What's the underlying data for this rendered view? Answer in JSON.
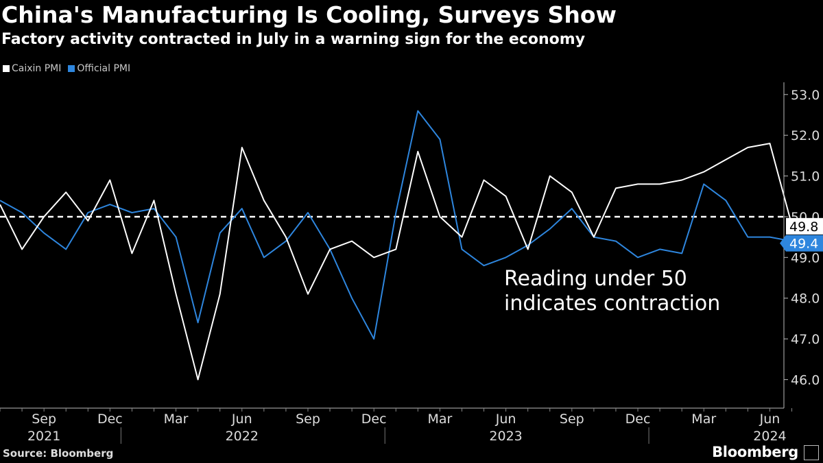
{
  "header": {
    "title": "China's Manufacturing Is Cooling, Surveys Show",
    "subtitle": "Factory activity contracted in July in a warning sign for the economy"
  },
  "footer": {
    "source": "Source: Bloomberg",
    "brand": "Bloomberg"
  },
  "colors": {
    "caixin": "#ffffff",
    "official": "#2e86de",
    "background": "#000000",
    "axis": "#bbbbbb"
  },
  "chart_data": {
    "type": "line",
    "title": "China's Manufacturing Is Cooling, Surveys Show",
    "subtitle": "Factory activity contracted in July in a warning sign for the economy",
    "x": [
      "Jul 2021",
      "Aug 2021",
      "Sep 2021",
      "Oct 2021",
      "Nov 2021",
      "Dec 2021",
      "Jan 2022",
      "Feb 2022",
      "Mar 2022",
      "Apr 2022",
      "May 2022",
      "Jun 2022",
      "Jul 2022",
      "Aug 2022",
      "Sep 2022",
      "Oct 2022",
      "Nov 2022",
      "Dec 2022",
      "Jan 2023",
      "Feb 2023",
      "Mar 2023",
      "Apr 2023",
      "May 2023",
      "Jun 2023",
      "Jul 2023",
      "Aug 2023",
      "Sep 2023",
      "Oct 2023",
      "Nov 2023",
      "Dec 2023",
      "Jan 2024",
      "Feb 2024",
      "Mar 2024",
      "Apr 2024",
      "May 2024",
      "Jun 2024",
      "Jul 2024"
    ],
    "series": [
      {
        "name": "Caixin PMI",
        "color": "#ffffff",
        "values": [
          50.3,
          49.2,
          50.0,
          50.6,
          49.9,
          50.9,
          49.1,
          50.4,
          48.1,
          46.0,
          48.1,
          51.7,
          50.4,
          49.5,
          48.1,
          49.2,
          49.4,
          49.0,
          49.2,
          51.6,
          50.0,
          49.5,
          50.9,
          50.5,
          49.2,
          51.0,
          50.6,
          49.5,
          50.7,
          50.8,
          50.8,
          50.9,
          51.1,
          51.4,
          51.7,
          51.8,
          49.8
        ]
      },
      {
        "name": "Official PMI",
        "color": "#2e86de",
        "values": [
          50.4,
          50.1,
          49.6,
          49.2,
          50.1,
          50.3,
          50.1,
          50.2,
          49.5,
          47.4,
          49.6,
          50.2,
          49.0,
          49.4,
          50.1,
          49.2,
          48.0,
          47.0,
          50.1,
          52.6,
          51.9,
          49.2,
          48.8,
          49.0,
          49.3,
          49.7,
          50.2,
          49.5,
          49.4,
          49.0,
          49.2,
          49.1,
          50.8,
          50.4,
          49.5,
          49.5,
          49.4
        ]
      }
    ],
    "ylim": [
      45.3,
      53.3
    ],
    "yticks": [
      46.0,
      47.0,
      48.0,
      49.0,
      50.0,
      51.0,
      52.0,
      53.0
    ],
    "ytick_labels": [
      "46.0",
      "47.0",
      "48.0",
      "49.0",
      "50.0",
      "51.0",
      "52.0",
      "53.0"
    ],
    "xtick_months": [
      {
        "label": "Sep",
        "index": 2
      },
      {
        "label": "Dec",
        "index": 5
      },
      {
        "label": "Mar",
        "index": 8
      },
      {
        "label": "Jun",
        "index": 11
      },
      {
        "label": "Sep",
        "index": 14
      },
      {
        "label": "Dec",
        "index": 17
      },
      {
        "label": "Mar",
        "index": 20
      },
      {
        "label": "Jun",
        "index": 23
      },
      {
        "label": "Sep",
        "index": 26
      },
      {
        "label": "Dec",
        "index": 29
      },
      {
        "label": "Mar",
        "index": 32
      },
      {
        "label": "Jun",
        "index": 35
      }
    ],
    "xtick_years": [
      {
        "label": "2021",
        "index": 2
      },
      {
        "label": "2022",
        "index": 11
      },
      {
        "label": "2023",
        "index": 23
      },
      {
        "label": "2024",
        "index": 35
      }
    ],
    "year_dividers": [
      5.5,
      17.5,
      29.5
    ],
    "reference_line": {
      "value": 50.0,
      "style": "dashed"
    },
    "end_labels": [
      "49.8",
      "49.4"
    ],
    "annotation": [
      "Reading under 50",
      "indicates contraction"
    ],
    "legend": [
      "Caixin PMI",
      "Official PMI"
    ],
    "legend_position": "top-left"
  }
}
